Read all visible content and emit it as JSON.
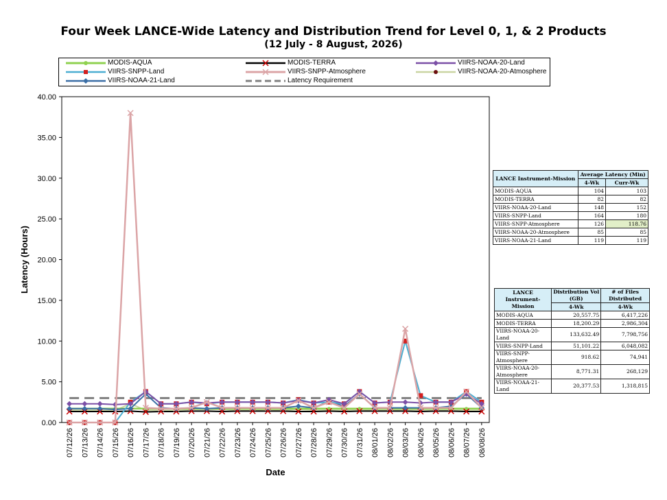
{
  "page": {
    "title": "Four Week LANCE-Wide Latency and Distribution Trend for Level 0, 1, & 2 Products",
    "subtitle": "(12 July   - 8 August, 2026)"
  },
  "chart_data": {
    "type": "line",
    "ylabel": "Latency (Hours)",
    "xlabel": "Date",
    "ylim": [
      0,
      40
    ],
    "yticks": [
      "0.00",
      "5.00",
      "10.00",
      "15.00",
      "20.00",
      "25.00",
      "30.00",
      "35.00",
      "40.00"
    ],
    "categories": [
      "07/12/26",
      "07/13/26",
      "07/14/26",
      "07/15/26",
      "07/16/26",
      "07/17/26",
      "07/18/26",
      "07/19/26",
      "07/20/26",
      "07/21/26",
      "07/22/26",
      "07/23/26",
      "07/24/26",
      "07/25/26",
      "07/26/26",
      "07/27/26",
      "07/28/26",
      "07/29/26",
      "07/30/26",
      "07/31/26",
      "08/01/26",
      "08/02/26",
      "08/03/26",
      "08/04/26",
      "08/05/26",
      "08/06/26",
      "08/07/26",
      "08/08/26"
    ],
    "legend_placement": "top",
    "series": [
      {
        "name": "MODIS-AQUA",
        "color": "#8fd14f",
        "marker": "circle",
        "width": 2.5,
        "values": [
          1.7,
          1.7,
          1.7,
          1.7,
          1.7,
          1.7,
          1.7,
          1.7,
          1.7,
          1.7,
          1.7,
          1.7,
          1.7,
          1.7,
          1.7,
          1.7,
          1.7,
          1.7,
          1.7,
          1.7,
          1.7,
          1.7,
          1.7,
          1.7,
          1.7,
          1.7,
          1.7,
          1.7
        ]
      },
      {
        "name": "MODIS-TERRA",
        "color": "#000000",
        "marker": "x",
        "width": 2,
        "values": [
          1.35,
          1.35,
          1.35,
          1.35,
          1.4,
          1.3,
          1.35,
          1.35,
          1.4,
          1.4,
          1.35,
          1.4,
          1.4,
          1.4,
          1.4,
          1.35,
          1.35,
          1.4,
          1.35,
          1.4,
          1.4,
          1.4,
          1.4,
          1.35,
          1.4,
          1.4,
          1.35,
          1.35
        ]
      },
      {
        "name": "VIIRS-NOAA-20-Land",
        "color": "#7b4fa6",
        "marker": "diamond",
        "width": 2,
        "values": [
          2.3,
          2.3,
          2.3,
          2.2,
          2.3,
          3.8,
          2.3,
          2.3,
          2.5,
          2.4,
          2.5,
          2.5,
          2.5,
          2.5,
          2.4,
          2.7,
          2.4,
          2.8,
          2.3,
          3.8,
          2.4,
          2.5,
          2.5,
          2.4,
          2.5,
          2.5,
          3.5,
          2.3
        ]
      },
      {
        "name": "VIIRS-SNPP-Land",
        "color": "#4aaed1",
        "marker": "square",
        "width": 2,
        "values": [
          0,
          0,
          0,
          0,
          2.5,
          3.8,
          2.3,
          2.3,
          2.5,
          2.3,
          2.5,
          2.5,
          2.5,
          2.5,
          2.4,
          2.8,
          2.4,
          2.5,
          2.3,
          3.8,
          2.4,
          2.5,
          10.0,
          3.3,
          2.5,
          2.5,
          3.8,
          2.5
        ]
      },
      {
        "name": "VIIRS-SNPP-Atmosphere",
        "color": "#dba4a6",
        "marker": "x",
        "width": 2.5,
        "values": [
          0,
          0,
          0,
          0,
          38.0,
          1.8,
          1.7,
          1.7,
          1.8,
          2.5,
          1.8,
          1.8,
          1.8,
          1.8,
          1.8,
          2.7,
          1.8,
          2.5,
          1.8,
          3.5,
          1.8,
          1.8,
          11.5,
          1.8,
          1.8,
          1.8,
          3.8,
          1.8
        ]
      },
      {
        "name": "VIIRS-NOAA-20-Atmosphere",
        "color": "#c9d5a1",
        "marker": "dot",
        "width": 2,
        "values": [
          1.5,
          1.5,
          1.5,
          1.5,
          2.3,
          1.5,
          1.5,
          1.5,
          1.6,
          1.6,
          1.6,
          1.5,
          1.5,
          1.6,
          1.5,
          1.6,
          1.5,
          1.5,
          1.5,
          1.6,
          1.5,
          1.5,
          1.6,
          1.5,
          1.5,
          1.5,
          1.5,
          1.5
        ]
      },
      {
        "name": "VIIRS-NOAA-21-Land",
        "color": "#3a6ea5",
        "marker": "diamond",
        "width": 2,
        "values": [
          1.7,
          1.7,
          1.7,
          1.6,
          1.7,
          3.5,
          1.8,
          1.7,
          1.8,
          1.7,
          1.8,
          1.8,
          1.8,
          1.8,
          1.8,
          2.0,
          1.8,
          2.6,
          2.0,
          3.5,
          1.8,
          1.8,
          1.8,
          1.8,
          1.8,
          2.0,
          3.5,
          1.8
        ]
      },
      {
        "name": "Latency Requirement",
        "color": "#7f7f7f",
        "marker": "none",
        "width": 3,
        "dashed": true,
        "values": [
          3,
          3,
          3,
          3,
          3,
          3,
          3,
          3,
          3,
          3,
          3,
          3,
          3,
          3,
          3,
          3,
          3,
          3,
          3,
          3,
          3,
          3,
          3,
          3,
          3,
          3,
          3,
          3
        ]
      }
    ]
  },
  "latency_table": {
    "header_col1": "LANCE Instrument-Mission",
    "header_col2": "Average Latency (Min)",
    "sub1": "4-Wk",
    "sub2": "Curr-Wk",
    "rows": [
      {
        "name": "MODIS-AQUA",
        "a": "104",
        "b": "103"
      },
      {
        "name": "MODIS-TERRA",
        "a": "82",
        "b": "82"
      },
      {
        "name": "VIIRS-NOAA-20-Land",
        "a": "148",
        "b": "152"
      },
      {
        "name": "VIIRS-SNPP-Land",
        "a": "164",
        "b": "180"
      },
      {
        "name": "VIIRS-SNPP-Atmosphere",
        "a": "126",
        "b": "118.76"
      },
      {
        "name": "VIIRS-NOAA-20-Atmosphere",
        "a": "85",
        "b": "85"
      },
      {
        "name": "VIIRS-NOAA-21-Land",
        "a": "119",
        "b": "119"
      }
    ]
  },
  "distribution_table": {
    "header_col1": "LANCE Instrument-Mission",
    "header_col2": "Distribution Vol (GB)",
    "header_col3": "# of Files Distributed",
    "sub1": "4-Wk",
    "sub2": "4-Wk",
    "rows": [
      {
        "name": "MODIS-AQUA",
        "a": "20,557.75",
        "b": "6,417,226"
      },
      {
        "name": "MODIS-TERRA",
        "a": "18,200.29",
        "b": "2,986,304"
      },
      {
        "name": "VIIRS-NOAA-20-Land",
        "a": "133,632.49",
        "b": "7,798,756"
      },
      {
        "name": "VIIRS-SNPP-Land",
        "a": "51,101.22",
        "b": "6,048,082"
      },
      {
        "name": "VIIRS-SNPP-Atmosphere",
        "a": "918.62",
        "b": "74,941"
      },
      {
        "name": "VIIRS-NOAA-20-Atmosphere",
        "a": "8,771.31",
        "b": "268,129"
      },
      {
        "name": "VIIRS-NOAA-21-Land",
        "a": "20,377.53",
        "b": "1,318,815"
      }
    ]
  }
}
